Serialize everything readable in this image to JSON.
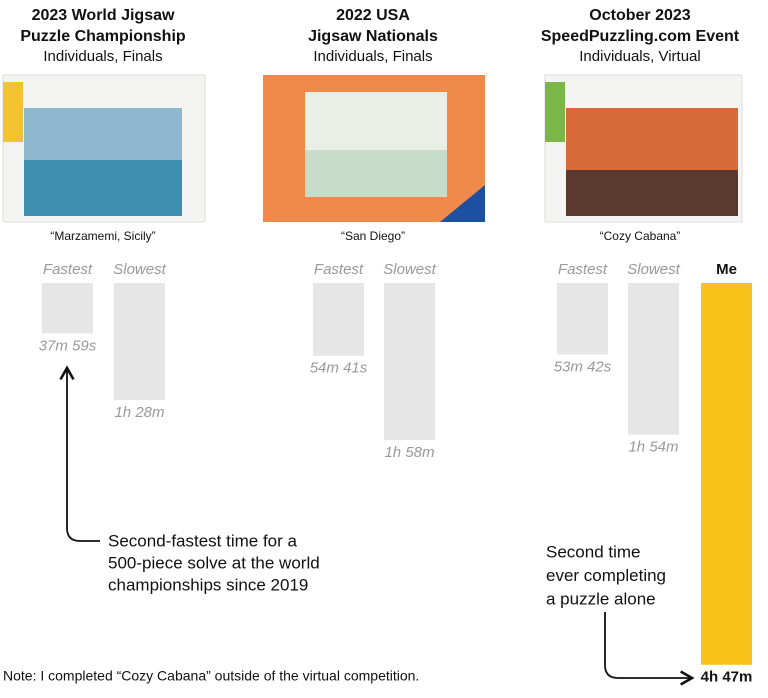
{
  "chart_data": {
    "type": "bar",
    "groups": [
      {
        "title_lines": [
          "2023 World Jigsaw",
          "Puzzle Championship"
        ],
        "subtitle": "Individuals, Finals",
        "puzzle": "“Marzamemi, Sicily”"
      },
      {
        "title_lines": [
          "2022 USA",
          "Jigsaw Nationals"
        ],
        "subtitle": "Individuals, Finals",
        "puzzle": "“San Diego”"
      },
      {
        "title_lines": [
          "October 2023",
          "SpeedPuzzling.com Event"
        ],
        "subtitle": "Individuals, Virtual",
        "puzzle": "“Cozy Cabana”"
      }
    ],
    "series": [
      {
        "name": "Fastest",
        "color": "#e6e6e6",
        "label_color": "#999999",
        "values": [
          2279,
          3281,
          3222
        ],
        "value_labels": [
          "37m 59s",
          "54m 41s",
          "53m 42s"
        ]
      },
      {
        "name": "Slowest",
        "color": "#e6e6e6",
        "label_color": "#999999",
        "values": [
          5280,
          7080,
          6840
        ],
        "value_labels": [
          "1h 28m",
          "1h 58m",
          "1h 54m"
        ]
      },
      {
        "name": "Me",
        "color": "#f9c21b",
        "label_color": "#111111",
        "values": [
          null,
          null,
          17220
        ],
        "value_labels": [
          null,
          null,
          "4h 47m"
        ]
      }
    ],
    "annotations": [
      {
        "lines": [
          "Second-fastest time for a",
          "500-piece solve at the world",
          "championships since 2019"
        ]
      },
      {
        "lines": [
          "Second time",
          "ever completing",
          "a puzzle alone"
        ]
      }
    ],
    "note": "Note: I completed “Cozy Cabana” outside of the virtual competition."
  }
}
